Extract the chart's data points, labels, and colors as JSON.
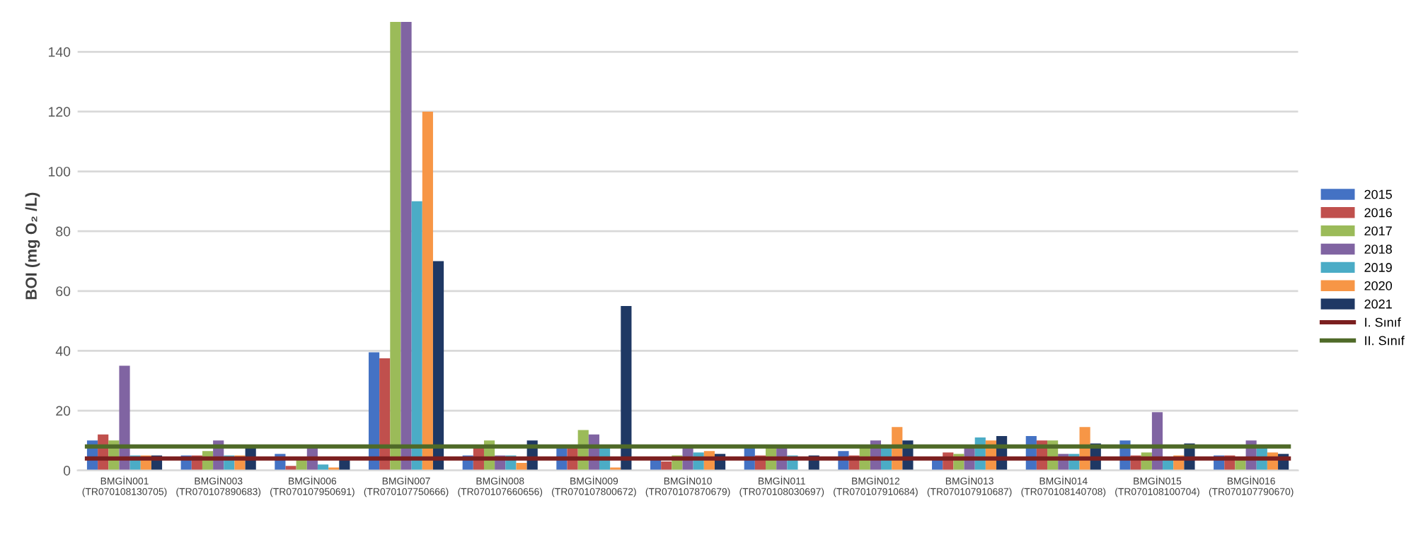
{
  "chart_data": {
    "type": "bar",
    "ylabel": "BOI (mg O₂ /L)",
    "categories": [
      "BMGİN001\n(TR070108130705)",
      "BMGİN003\n(TR070107890683)",
      "BMGİN006\n(TR070107950691)",
      "BMGİN007\n(TR070107750666)",
      "BMGİN008\n(TR070107660656)",
      "BMGİN009\n(TR070107800672)",
      "BMGİN010\n(TR070107870679)",
      "BMGİN011\n(TR070108030697)",
      "BMGİN012\n(TR070107910684)",
      "BMGİN013\n(TR070107910687)",
      "BMGİN014\n(TR070108140708)",
      "BMGİN015\n(TR070108100704)",
      "BMGİN016\n(TR070107790670)"
    ],
    "series": [
      {
        "name": "2015",
        "color": "#4472c4",
        "values": [
          10,
          5,
          5.5,
          39.5,
          5,
          8,
          4,
          8,
          6.5,
          4,
          11.5,
          10,
          5
        ]
      },
      {
        "name": "2016",
        "color": "#c0504d",
        "values": [
          12,
          5,
          1.5,
          37.5,
          8,
          8,
          3,
          5,
          5,
          6,
          10,
          5,
          5
        ]
      },
      {
        "name": "2017",
        "color": "#9bbb59",
        "values": [
          10,
          6.5,
          4,
          150,
          10,
          13.5,
          5,
          8,
          8,
          5.5,
          10,
          6,
          4
        ]
      },
      {
        "name": "2018",
        "color": "#8064a2",
        "values": [
          35,
          10,
          8,
          150,
          5,
          12,
          8,
          8,
          10,
          8,
          5.5,
          19.5,
          10
        ]
      },
      {
        "name": "2019",
        "color": "#4bacc6",
        "values": [
          5,
          5,
          2,
          90,
          5,
          8,
          6,
          5,
          8,
          11,
          5.5,
          4,
          7.5
        ]
      },
      {
        "name": "2020",
        "color": "#f79646",
        "values": [
          5,
          5,
          1,
          120,
          2.5,
          1,
          6.5,
          null,
          14.5,
          10,
          14.5,
          5,
          6
        ]
      },
      {
        "name": "2021",
        "color": "#1f3864",
        "values": [
          5,
          8,
          4,
          70,
          10,
          55,
          5.5,
          5,
          10,
          11.5,
          9,
          9,
          5.5
        ]
      }
    ],
    "ref_lines": [
      {
        "axis": "y",
        "value": 4,
        "label": "I. Sınıf",
        "color": "#7b1f1f"
      },
      {
        "axis": "y",
        "value": 8,
        "label": "II. Sınıf",
        "color": "#4f6a28"
      }
    ],
    "ylim": [
      0,
      150
    ],
    "yticks": [
      0,
      20,
      40,
      60,
      80,
      100,
      120,
      140
    ],
    "grid": "y",
    "legend": "right"
  }
}
